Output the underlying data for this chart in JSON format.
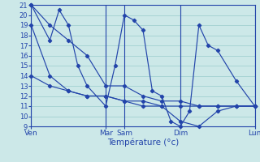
{
  "background_color": "#cce8e8",
  "grid_color": "#99cccc",
  "line_color": "#2244aa",
  "xlabel": "Température (°c)",
  "ylim": [
    9,
    21
  ],
  "yticks": [
    9,
    10,
    11,
    12,
    13,
    14,
    15,
    16,
    17,
    18,
    19,
    20,
    21
  ],
  "day_positions": [
    0,
    4,
    5,
    8,
    12
  ],
  "day_labels": [
    "Ven",
    "Mar",
    "Sam",
    "Dim",
    "Lun"
  ],
  "figsize": [
    3.2,
    2.0
  ],
  "dpi": 100,
  "series": {
    "s1": {
      "x": [
        0,
        1,
        2,
        3,
        4,
        5,
        6,
        7,
        8,
        9,
        10,
        11,
        12
      ],
      "y": [
        21,
        19,
        17.5,
        16,
        13,
        13,
        12,
        11.5,
        11.5,
        11,
        11,
        11,
        11
      ]
    },
    "s2": {
      "x": [
        0,
        1,
        2,
        3,
        4,
        5,
        6,
        7,
        8,
        9,
        10,
        11,
        12
      ],
      "y": [
        19,
        14,
        12.5,
        12,
        12,
        11.5,
        11,
        11,
        9.5,
        9,
        10.5,
        11,
        11
      ]
    },
    "s3": {
      "x": [
        0,
        1,
        2,
        3,
        4,
        5,
        6,
        7,
        8,
        9,
        10,
        11,
        12
      ],
      "y": [
        14,
        13,
        12.5,
        12,
        12,
        11.5,
        11.5,
        11,
        11,
        11,
        11,
        11,
        11
      ]
    },
    "s4": {
      "x": [
        0,
        1,
        1.5,
        2,
        2.5,
        3,
        4,
        4.5,
        5,
        5.5,
        6,
        6.5,
        7,
        7.5,
        8,
        8.5,
        9,
        9.5,
        10,
        11,
        12
      ],
      "y": [
        21,
        17.5,
        20.5,
        19,
        15,
        13,
        11,
        15,
        20,
        19.5,
        18.5,
        12.5,
        12,
        9.5,
        9,
        10.5,
        19,
        17,
        16.5,
        13.5,
        11
      ]
    }
  }
}
